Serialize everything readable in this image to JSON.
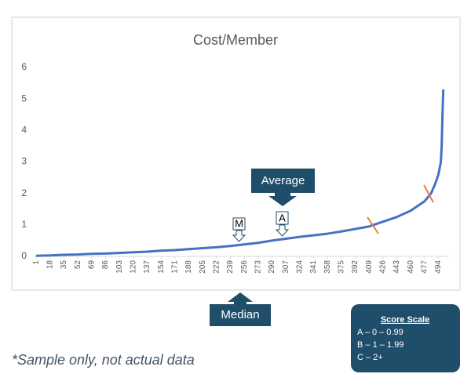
{
  "chart_data": {
    "type": "line",
    "title": "Cost/Member",
    "x": [
      1,
      18,
      35,
      52,
      69,
      86,
      103,
      120,
      137,
      154,
      171,
      188,
      205,
      222,
      239,
      256,
      273,
      290,
      307,
      324,
      341,
      358,
      375,
      392,
      409,
      426,
      443,
      460,
      477,
      485,
      490,
      494,
      497,
      498,
      499,
      500
    ],
    "values": [
      0.02,
      0.03,
      0.05,
      0.06,
      0.08,
      0.09,
      0.11,
      0.13,
      0.15,
      0.18,
      0.2,
      0.23,
      0.26,
      0.29,
      0.33,
      0.38,
      0.43,
      0.5,
      0.56,
      0.62,
      0.67,
      0.72,
      0.79,
      0.87,
      0.95,
      1.1,
      1.25,
      1.45,
      1.75,
      2.0,
      2.3,
      2.6,
      3.0,
      3.5,
      4.5,
      5.3
    ],
    "color": "#4472c4",
    "xlim": [
      -2,
      507
    ],
    "xticks": [
      1,
      18,
      35,
      52,
      69,
      86,
      103,
      120,
      137,
      154,
      171,
      188,
      205,
      222,
      239,
      256,
      273,
      290,
      307,
      324,
      341,
      358,
      375,
      392,
      409,
      426,
      443,
      460,
      477,
      494
    ],
    "ylim": [
      0,
      6
    ],
    "yticks": [
      0,
      1,
      2,
      3,
      4,
      5,
      6
    ],
    "grid": false,
    "annotations": {
      "average": "Average",
      "median": "Median",
      "median_marker": "M",
      "average_marker": "A"
    }
  },
  "score_scale": {
    "title": "Score Scale",
    "items": [
      "A – 0 – 0.99",
      "B – 1 – 1.99",
      "C – 2+"
    ]
  },
  "footnote": "*Sample only, not actual data"
}
